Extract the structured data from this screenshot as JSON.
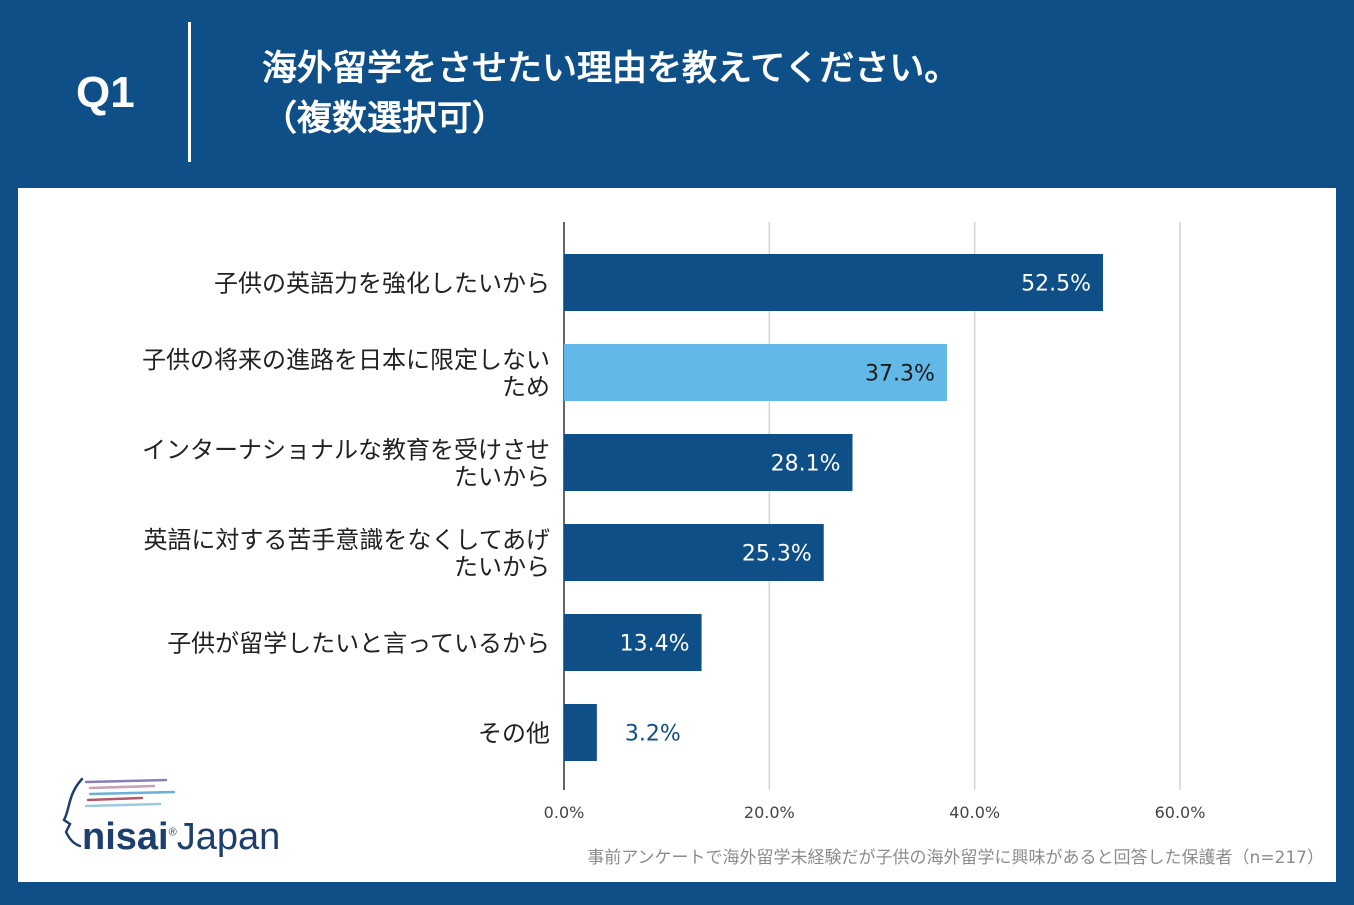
{
  "header": {
    "qnum": "Q1",
    "title_line1": "海外留学をさせたい理由を教えてください。",
    "title_line2": "（複数選択可）"
  },
  "logo": {
    "part1": "nisai",
    "part2": "Japan",
    "mark": "®"
  },
  "footnote": "事前アンケートで海外留学未経験だが子供の海外留学に興味があると回答した保護者（n=217）",
  "colors": {
    "header_bg": "#0e4f88",
    "bar": "#0e4f88",
    "bar_highlight": "#62b8e6",
    "grid": "#d4d4d4"
  },
  "chart_data": {
    "type": "bar",
    "orientation": "horizontal",
    "categories": [
      [
        "子供の英語力を強化したいから"
      ],
      [
        "子供の将来の進路を日本に限定しない",
        "ため"
      ],
      [
        "インターナショナルな教育を受けさせ",
        "たいから"
      ],
      [
        "英語に対する苦手意識をなくしてあげ",
        "たいから"
      ],
      [
        "子供が留学したいと言っているから"
      ],
      [
        "その他"
      ]
    ],
    "values": [
      52.5,
      37.3,
      28.1,
      25.3,
      13.4,
      3.2
    ],
    "value_labels": [
      "52.5%",
      "37.3%",
      "28.1%",
      "25.3%",
      "13.4%",
      "3.2%"
    ],
    "highlight_index": 1,
    "xlim": [
      0,
      60
    ],
    "xticks": [
      0,
      20,
      40,
      60
    ],
    "xtick_labels": [
      "0.0%",
      "20.0%",
      "40.0%",
      "60.0%"
    ],
    "grid": true
  }
}
